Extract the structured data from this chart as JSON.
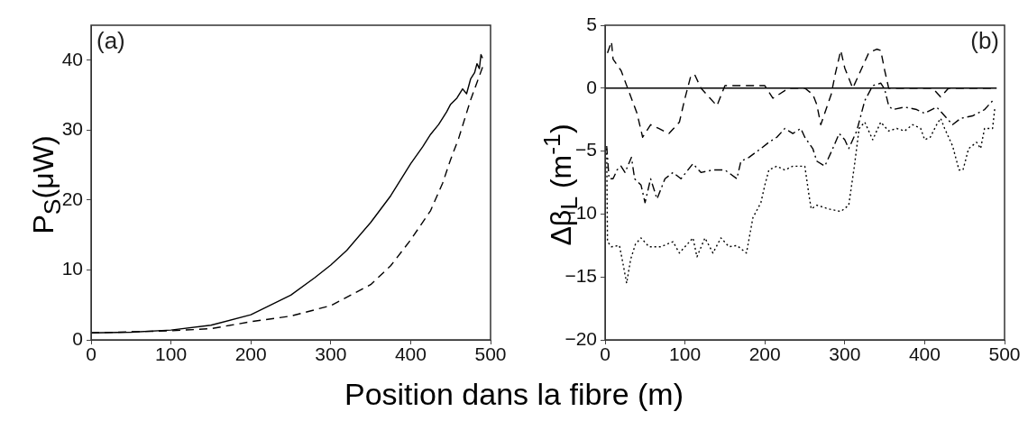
{
  "chart_data": [
    {
      "type": "line",
      "ylabel": "P$_{S}$(μW)",
      "xlabel": "Position dans la fibre (m)",
      "annotations": [
        "(a)"
      ],
      "xlim": [
        0,
        500
      ],
      "xticks": [
        0,
        100,
        200,
        300,
        400,
        500
      ],
      "ylim": [
        0,
        45
      ],
      "yticks": [
        0,
        10,
        20,
        30,
        40
      ],
      "grid": false,
      "legend": false,
      "marker": "none",
      "series": [
        {
          "color": "#000000",
          "line_style": "solid",
          "x": [
            0,
            50,
            100,
            150,
            200,
            250,
            280,
            300,
            320,
            350,
            375,
            400,
            415,
            425,
            435,
            445,
            450,
            458,
            465,
            470,
            475,
            480,
            483,
            486,
            488,
            490
          ],
          "values": [
            1.0,
            1.1,
            1.4,
            2.1,
            3.6,
            6.4,
            8.9,
            10.7,
            12.8,
            16.8,
            20.6,
            25.2,
            27.6,
            29.4,
            30.8,
            32.6,
            33.7,
            34.6,
            35.9,
            35.2,
            37.3,
            38.2,
            39.5,
            38.8,
            40.8,
            40.3
          ]
        },
        {
          "color": "#000000",
          "line_style": "dashed",
          "x": [
            0,
            100,
            150,
            200,
            250,
            300,
            350,
            375,
            400,
            425,
            440,
            450,
            460,
            475,
            490
          ],
          "values": [
            1.0,
            1.3,
            1.6,
            2.6,
            3.4,
            4.9,
            7.9,
            10.6,
            14.3,
            18.5,
            22.4,
            25.8,
            28.8,
            34.3,
            39.0
          ]
        }
      ]
    },
    {
      "type": "line",
      "ylabel": "Δβ$_{L}$ (m$^{-1}$)",
      "annotations": [
        "(b)"
      ],
      "xlim": [
        0,
        500
      ],
      "xticks": [
        0,
        100,
        200,
        300,
        400,
        500
      ],
      "ylim": [
        -20,
        5
      ],
      "yticks": [
        -20,
        -15,
        -10,
        -5,
        0,
        5
      ],
      "grid": false,
      "legend": false,
      "marker": "none",
      "series": [
        {
          "color": "#000000",
          "line_style": "solid",
          "x": [
            0,
            490
          ],
          "values": [
            0,
            0
          ]
        },
        {
          "color": "#000000",
          "line_style": "dashed",
          "x": [
            3,
            8,
            10,
            20,
            30,
            40,
            47,
            57,
            67,
            80,
            93,
            100,
            107,
            112,
            120,
            140,
            150,
            175,
            200,
            210,
            230,
            250,
            260,
            265,
            270,
            283,
            288,
            295,
            300,
            310,
            320,
            330,
            340,
            345,
            350,
            355,
            380,
            410,
            420,
            430,
            460,
            490
          ],
          "values": [
            2.8,
            3.7,
            2.3,
            1.4,
            -0.3,
            -2.0,
            -3.9,
            -2.9,
            -3.2,
            -3.6,
            -2.7,
            -0.8,
            0.9,
            1.1,
            0,
            -1.4,
            0.2,
            0.2,
            0.2,
            -0.8,
            0,
            0,
            -0.5,
            -1.3,
            -2.9,
            -0.5,
            1.1,
            3.0,
            1.6,
            0,
            1.4,
            2.8,
            3.1,
            3.0,
            1.4,
            0,
            0,
            0,
            -0.7,
            0,
            0,
            0
          ]
        },
        {
          "color": "#000000",
          "line_style": "dashdot",
          "x": [
            2,
            5,
            10,
            15,
            20,
            25,
            33,
            37,
            45,
            50,
            57,
            65,
            75,
            85,
            95,
            110,
            120,
            135,
            150,
            165,
            170,
            180,
            195,
            205,
            215,
            225,
            235,
            245,
            250,
            260,
            265,
            275,
            285,
            293,
            300,
            305,
            315,
            325,
            335,
            345,
            350,
            355,
            360,
            375,
            390,
            400,
            415,
            425,
            435,
            445,
            460,
            475,
            485
          ],
          "values": [
            -4.6,
            -7.2,
            -7.2,
            -6.5,
            -6.2,
            -6.7,
            -5.5,
            -7.2,
            -7.7,
            -9.1,
            -7.2,
            -8.8,
            -7.2,
            -6.7,
            -7.2,
            -6.0,
            -6.7,
            -6.5,
            -6.5,
            -7.2,
            -5.8,
            -5.5,
            -4.8,
            -4.3,
            -3.9,
            -3.2,
            -3.6,
            -3.2,
            -3.9,
            -4.8,
            -5.8,
            -6.2,
            -4.8,
            -3.6,
            -4.1,
            -4.8,
            -3.4,
            -1.0,
            0.2,
            0.4,
            -0.1,
            -1.4,
            -1.7,
            -1.5,
            -1.7,
            -2.0,
            -1.5,
            -2.2,
            -2.9,
            -2.4,
            -2.2,
            -1.7,
            -1.0
          ]
        },
        {
          "color": "#000000",
          "line_style": "dotted",
          "x": [
            2,
            3,
            8,
            18,
            22,
            27,
            32,
            38,
            45,
            55,
            70,
            85,
            93,
            100,
            110,
            115,
            125,
            135,
            145,
            155,
            165,
            177,
            185,
            195,
            200,
            205,
            215,
            225,
            235,
            245,
            250,
            255,
            258,
            265,
            280,
            295,
            305,
            312,
            318,
            325,
            335,
            345,
            355,
            365,
            375,
            385,
            395,
            400,
            407,
            415,
            420,
            425,
            435,
            443,
            448,
            455,
            465,
            470,
            475,
            485,
            488
          ],
          "values": [
            -4.8,
            -12.2,
            -12.6,
            -12.5,
            -13.8,
            -15.5,
            -13.6,
            -12.4,
            -11.9,
            -12.6,
            -12.6,
            -12.2,
            -13.1,
            -12.6,
            -11.9,
            -13.4,
            -11.9,
            -13.1,
            -11.9,
            -12.6,
            -12.5,
            -13.1,
            -10.3,
            -9.1,
            -7.7,
            -6.5,
            -6.2,
            -6.5,
            -6.2,
            -6.2,
            -6.2,
            -8.4,
            -9.6,
            -9.3,
            -9.6,
            -9.8,
            -9.3,
            -6.2,
            -3.2,
            -2.7,
            -4.1,
            -2.7,
            -3.4,
            -3.2,
            -3.4,
            -2.9,
            -3.2,
            -4.1,
            -3.9,
            -2.9,
            -2.4,
            -3.2,
            -4.6,
            -6.5,
            -6.5,
            -4.8,
            -4.3,
            -4.8,
            -3.2,
            -3.2,
            -1.5
          ]
        }
      ]
    }
  ]
}
